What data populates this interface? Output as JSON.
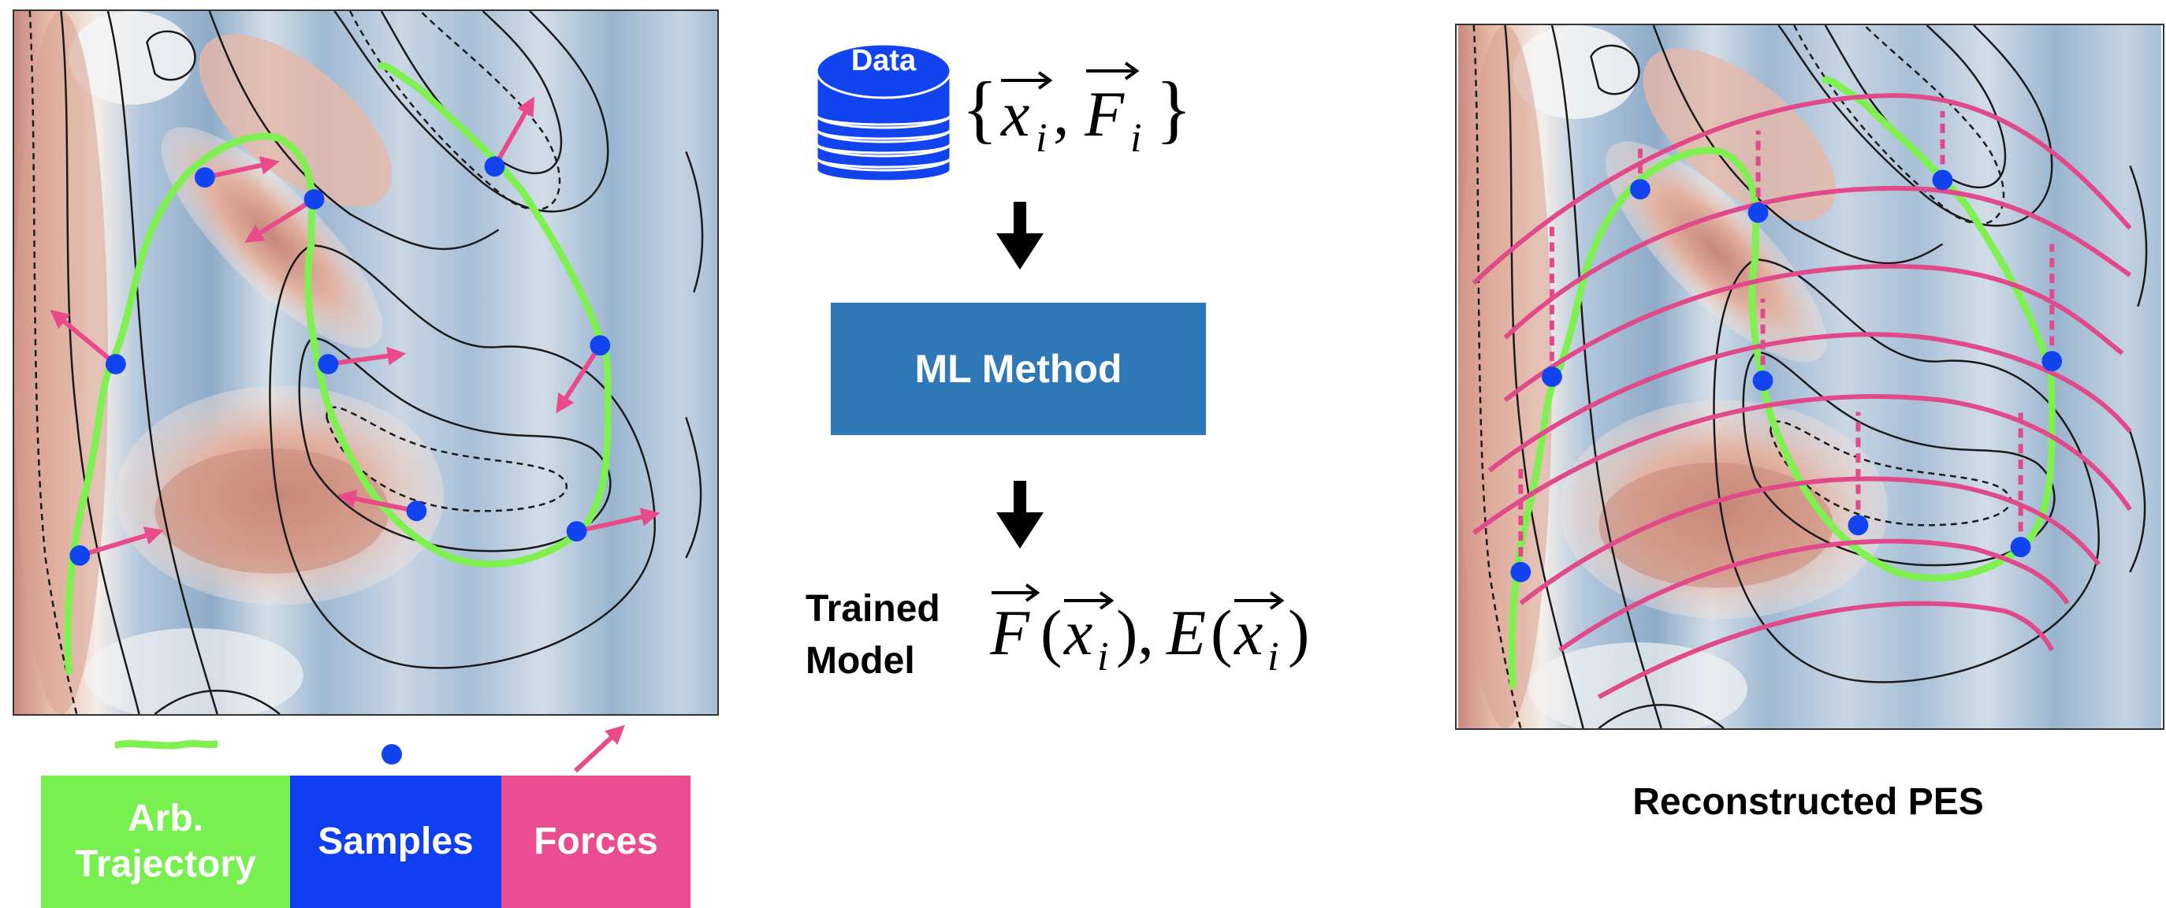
{
  "data_icon_label": "Data",
  "data_formula": "{ x_i , F_i }",
  "ml_method_label": "ML Method",
  "trained_model_label": "Trained\nModel",
  "model_formula": "F(x_i), E(x_i)",
  "legend": {
    "trajectory": "Arb.\nTrajectory",
    "samples": "Samples",
    "forces": "Forces"
  },
  "reconstructed_title": "Reconstructed PES",
  "colors": {
    "trajectory": "#7ef050",
    "samples": "#1144ee",
    "forces": "#e84a8a",
    "ml_box": "#2f78b8",
    "legend_traj_bg": "#77ef4f",
    "legend_samples_bg": "#0f3ef0",
    "legend_forces_bg": "#ea4c90"
  }
}
